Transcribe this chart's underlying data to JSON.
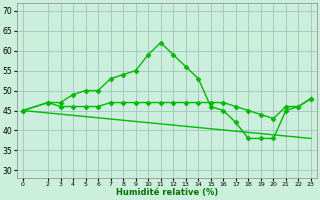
{
  "xlabel": "Humidité relative (%)",
  "bg_color": "#cceedd",
  "grid_color": "#99bbbb",
  "line_color": "#00bb00",
  "marker": "D",
  "markersize": 2.5,
  "linewidth": 1.0,
  "xlim": [
    -0.5,
    23.5
  ],
  "ylim": [
    28,
    72
  ],
  "yticks": [
    30,
    35,
    40,
    45,
    50,
    55,
    60,
    65,
    70
  ],
  "xticks": [
    0,
    2,
    3,
    4,
    5,
    6,
    7,
    8,
    9,
    10,
    11,
    12,
    13,
    14,
    15,
    16,
    17,
    18,
    19,
    20,
    21,
    22,
    23
  ],
  "series1_x": [
    0,
    2,
    3,
    4,
    5,
    6,
    7,
    8,
    9,
    10,
    11,
    12,
    13,
    14,
    15,
    16,
    17,
    18,
    19,
    20,
    21,
    22,
    23
  ],
  "series1_y": [
    45,
    47,
    47,
    49,
    50,
    50,
    53,
    54,
    55,
    59,
    62,
    59,
    56,
    53,
    46,
    45,
    42,
    38,
    38,
    38,
    45,
    46,
    48
  ],
  "series2_x": [
    0,
    2,
    3,
    4,
    5,
    6,
    7,
    8,
    9,
    10,
    11,
    12,
    13,
    14,
    15,
    16,
    17,
    18,
    19,
    20,
    21,
    22,
    23
  ],
  "series2_y": [
    45,
    47,
    46,
    46,
    46,
    46,
    47,
    47,
    47,
    47,
    47,
    47,
    47,
    47,
    47,
    47,
    46,
    45,
    44,
    43,
    46,
    46,
    48
  ],
  "series3_x": [
    0,
    23
  ],
  "series3_y": [
    45,
    38
  ]
}
